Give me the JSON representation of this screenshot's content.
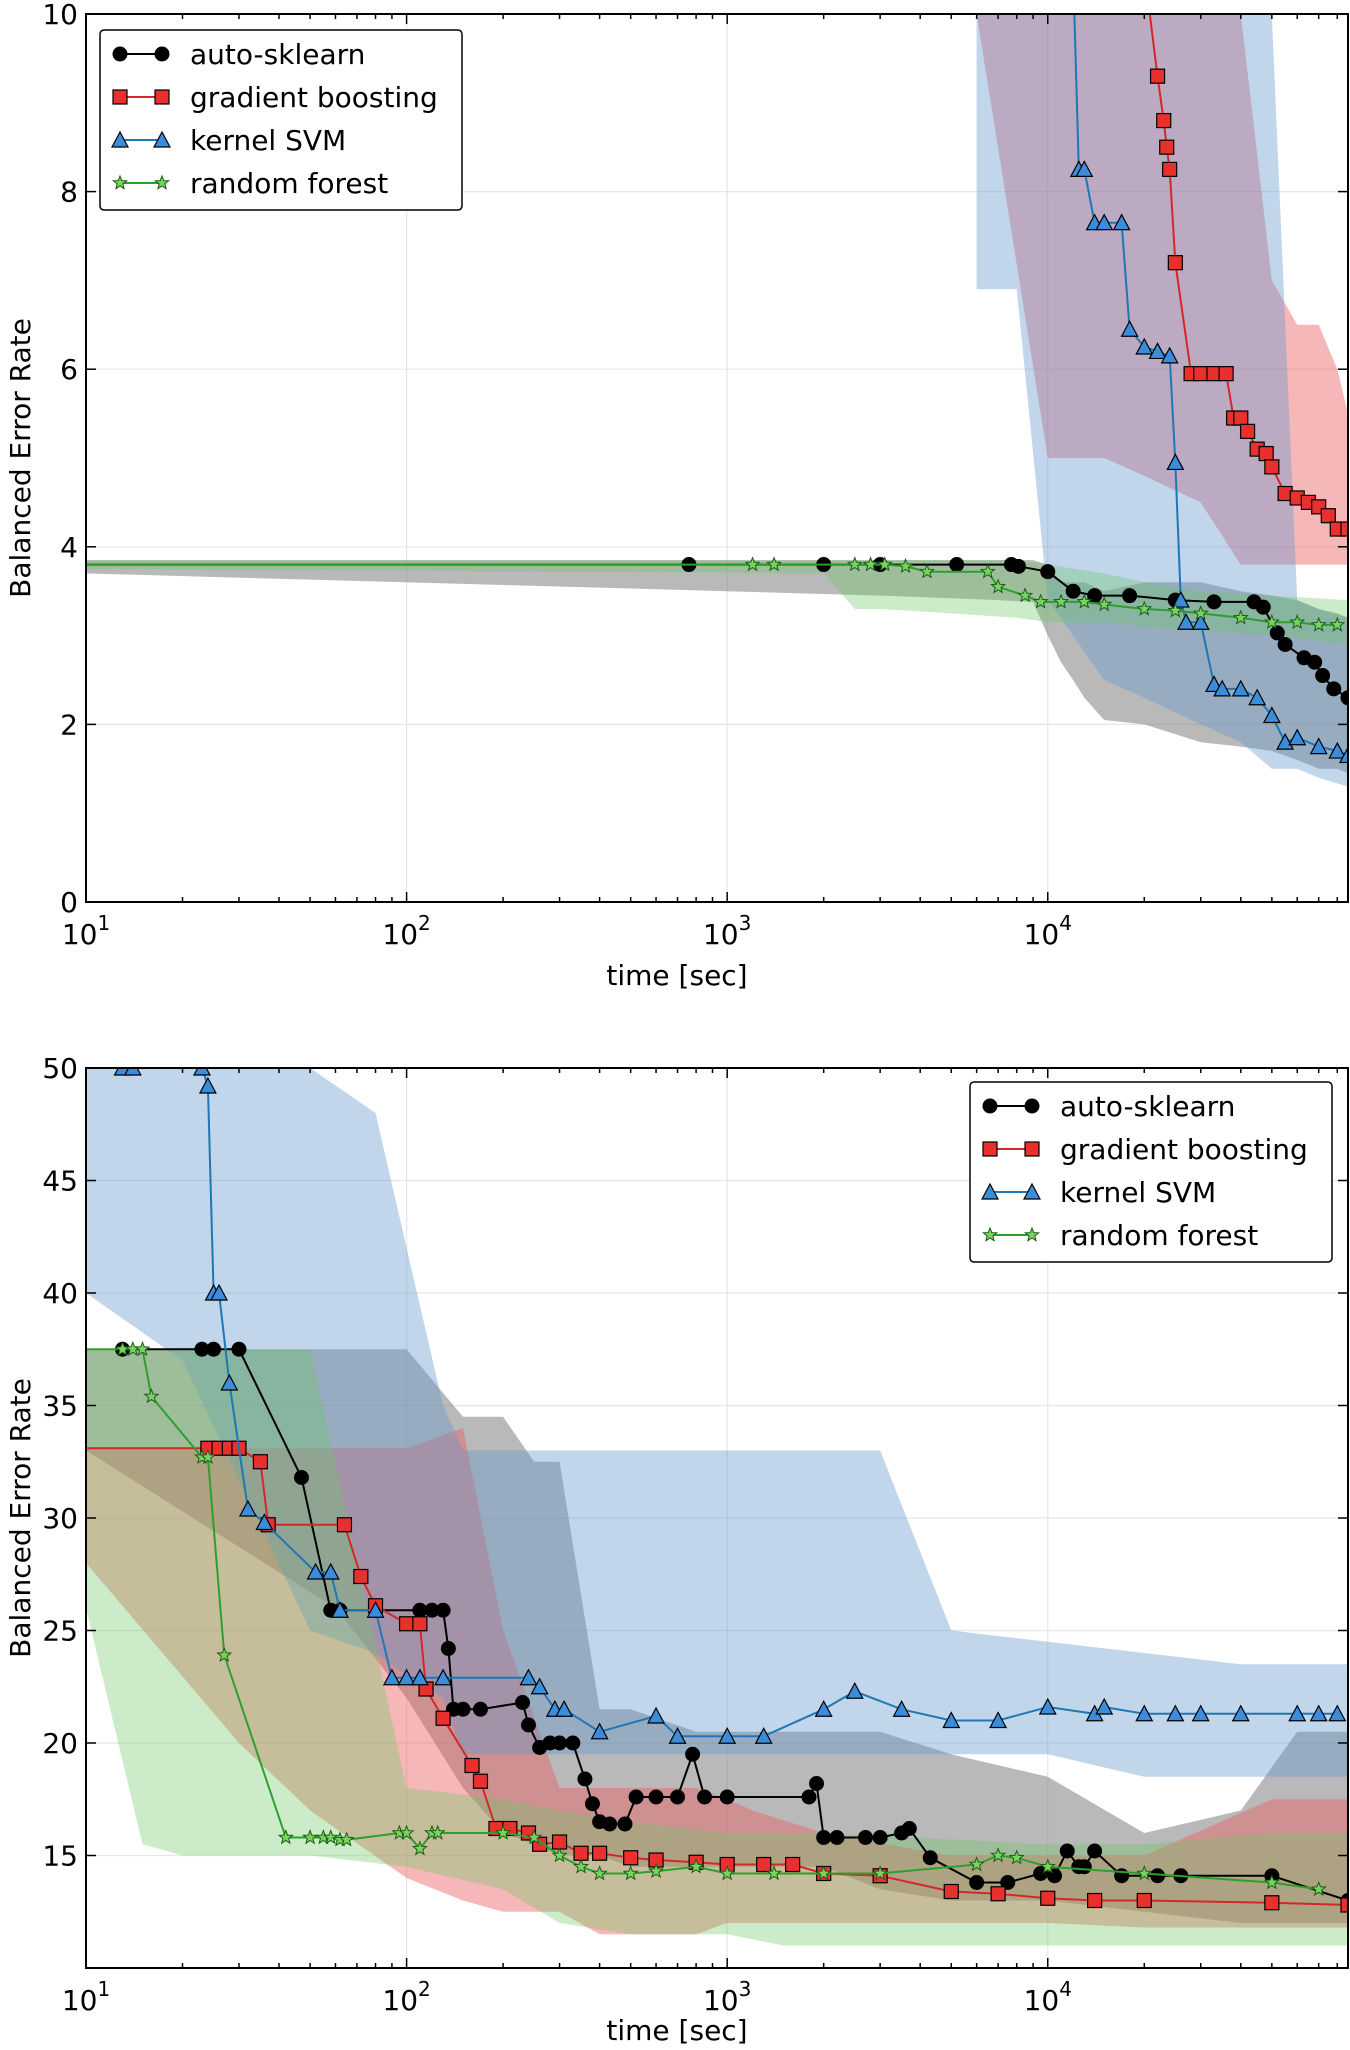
{
  "chart_data": [
    {
      "type": "line",
      "xscale": "log",
      "xlabel": "time [sec]",
      "ylabel": "Balanced Error Rate",
      "xlim": [
        10,
        86400
      ],
      "ylim": [
        0,
        10
      ],
      "yticks": [
        0,
        2,
        4,
        6,
        8,
        10
      ],
      "xticks": [
        {
          "value": 10,
          "base": "10",
          "exp": "1"
        },
        {
          "value": 100,
          "base": "10",
          "exp": "2"
        },
        {
          "value": 1000,
          "base": "10",
          "exp": "3"
        },
        {
          "value": 10000,
          "base": "10",
          "exp": "4"
        }
      ],
      "grid": true,
      "legend": "top-left",
      "series": [
        {
          "name": "auto-sklearn",
          "color": "#000000",
          "marker": "circle",
          "x": [
            10,
            760,
            2000,
            3000,
            5200,
            7700,
            8100,
            10000,
            12000,
            14000,
            18000,
            25000,
            33000,
            44000,
            47000,
            52000,
            55000,
            63000,
            68000,
            72000,
            78000,
            86400
          ],
          "y": [
            3.8,
            3.8,
            3.8,
            3.8,
            3.8,
            3.8,
            3.78,
            3.72,
            3.5,
            3.45,
            3.45,
            3.4,
            3.38,
            3.38,
            3.32,
            3.03,
            2.9,
            2.75,
            2.7,
            2.55,
            2.4,
            2.3
          ],
          "band_lo": [
            3.7,
            3.5,
            3.45,
            3.42,
            3.4,
            3.38,
            3.0,
            2.7,
            2.5,
            2.3,
            2.05,
            2.0,
            1.8,
            1.75,
            1.7,
            1.6,
            1.5,
            1.5,
            1.45
          ],
          "band_hi": [
            3.85,
            3.85,
            3.85,
            3.85,
            3.85,
            3.85,
            3.8,
            3.6,
            3.6,
            3.6,
            3.5,
            3.6,
            3.6,
            3.5,
            3.45,
            3.4,
            3.3,
            3.25,
            3.2
          ],
          "band_x": [
            10,
            1000,
            3000,
            5000,
            7000,
            9000,
            10000,
            11000,
            12000,
            13000,
            15000,
            20000,
            30000,
            40000,
            50000,
            60000,
            70000,
            80000,
            86400
          ]
        },
        {
          "name": "gradient boosting",
          "color": "#d62728",
          "marker": "square",
          "x": [
            20000,
            22000,
            23000,
            23500,
            24000,
            25000,
            28000,
            30000,
            33000,
            36000,
            38000,
            40000,
            42000,
            45000,
            48000,
            50000,
            55000,
            60000,
            65000,
            70000,
            75000,
            80000,
            86400
          ],
          "y": [
            10.5,
            9.3,
            8.8,
            8.5,
            8.25,
            7.2,
            5.95,
            5.95,
            5.95,
            5.95,
            5.45,
            5.45,
            5.3,
            5.1,
            5.05,
            4.9,
            4.6,
            4.55,
            4.5,
            4.45,
            4.35,
            4.2,
            4.2
          ],
          "band_x": [
            1700,
            2500,
            4000,
            6000,
            10000,
            15000,
            20000,
            30000,
            40000,
            50000,
            60000,
            70000,
            80000,
            86400
          ],
          "band_lo": [
            10,
            10,
            10,
            10,
            5.0,
            5.0,
            4.8,
            4.5,
            3.8,
            3.8,
            3.8,
            3.8,
            3.8,
            3.8
          ],
          "band_hi": [
            10,
            10,
            10,
            10,
            10,
            10,
            10,
            10,
            10,
            7.0,
            6.5,
            6.5,
            6.0,
            5.5
          ]
        },
        {
          "name": "kernel SVM",
          "color": "#1f77b4",
          "marker": "triangle",
          "x": [
            12000,
            12500,
            13000,
            14000,
            15000,
            17000,
            18000,
            20000,
            22000,
            24000,
            25000,
            26000,
            27000,
            30000,
            33000,
            35000,
            40000,
            45000,
            50000,
            55000,
            60000,
            70000,
            80000,
            86400
          ],
          "y": [
            10.5,
            8.25,
            8.25,
            7.65,
            7.65,
            7.65,
            6.45,
            6.25,
            6.2,
            6.15,
            4.95,
            3.4,
            3.15,
            3.15,
            2.45,
            2.4,
            2.4,
            2.3,
            2.1,
            1.8,
            1.85,
            1.75,
            1.7,
            1.65
          ],
          "band_x": [
            6000,
            8000,
            10000,
            12000,
            15000,
            20000,
            30000,
            40000,
            50000,
            60000,
            70000,
            86400
          ],
          "band_lo": [
            6.9,
            6.9,
            3.4,
            3.0,
            2.5,
            2.3,
            2.0,
            1.8,
            1.5,
            1.5,
            1.4,
            1.3
          ],
          "band_hi": [
            10,
            10,
            10,
            10,
            10,
            10,
            10,
            10,
            10,
            3.4,
            3.3,
            3.2
          ]
        },
        {
          "name": "random forest",
          "color": "#2ca02c",
          "marker": "star",
          "x": [
            10,
            1200,
            1400,
            2500,
            2800,
            3100,
            3600,
            4200,
            6500,
            7000,
            8500,
            9500,
            11000,
            13000,
            15000,
            20000,
            25000,
            30000,
            40000,
            50000,
            60000,
            70000,
            80000
          ],
          "y": [
            3.8,
            3.8,
            3.8,
            3.8,
            3.8,
            3.8,
            3.78,
            3.72,
            3.72,
            3.55,
            3.45,
            3.38,
            3.38,
            3.38,
            3.35,
            3.3,
            3.28,
            3.25,
            3.2,
            3.15,
            3.15,
            3.12,
            3.12
          ],
          "band_x": [
            10,
            2000,
            2500,
            3000,
            5000,
            8000,
            10000,
            15000,
            20000,
            30000,
            50000,
            86400
          ],
          "band_lo": [
            3.75,
            3.7,
            3.3,
            3.3,
            3.25,
            3.2,
            3.15,
            3.15,
            3.1,
            3.05,
            3.0,
            2.9
          ],
          "band_hi": [
            3.85,
            3.85,
            3.85,
            3.85,
            3.85,
            3.85,
            3.8,
            3.7,
            3.6,
            3.5,
            3.45,
            3.4
          ]
        }
      ]
    },
    {
      "type": "line",
      "xscale": "log",
      "xlabel": "time [sec]",
      "ylabel": "Balanced Error Rate",
      "xlim": [
        10,
        86400
      ],
      "ylim": [
        10,
        50
      ],
      "yticks": [
        15,
        20,
        25,
        30,
        35,
        40,
        45,
        50
      ],
      "xticks": [
        {
          "value": 10,
          "base": "10",
          "exp": "1"
        },
        {
          "value": 100,
          "base": "10",
          "exp": "2"
        },
        {
          "value": 1000,
          "base": "10",
          "exp": "3"
        },
        {
          "value": 10000,
          "base": "10",
          "exp": "4"
        }
      ],
      "grid": true,
      "legend": "top-right",
      "series": [
        {
          "name": "auto-sklearn",
          "color": "#000000",
          "marker": "circle",
          "x": [
            13,
            23,
            25,
            30,
            47,
            58,
            62,
            110,
            120,
            130,
            135,
            140,
            150,
            170,
            230,
            240,
            260,
            280,
            300,
            330,
            360,
            380,
            400,
            430,
            480,
            520,
            600,
            700,
            780,
            850,
            1000,
            1800,
            1900,
            2000,
            2200,
            2700,
            3000,
            3500,
            3700,
            4300,
            6000,
            7500,
            9500,
            10500,
            11500,
            12500,
            13000,
            14000,
            17000,
            22000,
            26000,
            50000,
            86400
          ],
          "y": [
            37.5,
            37.5,
            37.5,
            37.5,
            31.8,
            25.9,
            25.9,
            25.9,
            25.9,
            25.9,
            24.2,
            21.5,
            21.5,
            21.5,
            21.8,
            20.8,
            19.8,
            20.0,
            20.0,
            20.0,
            18.4,
            17.3,
            16.5,
            16.4,
            16.4,
            17.6,
            17.6,
            17.6,
            19.5,
            17.6,
            17.6,
            17.6,
            18.2,
            15.8,
            15.8,
            15.8,
            15.8,
            16.0,
            16.2,
            14.9,
            13.8,
            13.8,
            14.2,
            14.1,
            15.2,
            14.5,
            14.5,
            15.2,
            14.1,
            14.1,
            14.1,
            14.1,
            13.0
          ],
          "band_x": [
            10,
            60,
            100,
            150,
            200,
            250,
            300,
            400,
            500,
            800,
            1000,
            2000,
            3000,
            5000,
            10000,
            20000,
            40000,
            60000,
            86400
          ],
          "band_lo": [
            33,
            26,
            22,
            18,
            16,
            15.5,
            15,
            15,
            14.5,
            14.5,
            14.5,
            14.5,
            13.5,
            13,
            13,
            12.5,
            12,
            12,
            12
          ],
          "band_hi": [
            37.5,
            37.5,
            37.5,
            34.5,
            34.5,
            32.5,
            32.5,
            21.5,
            21.5,
            20.5,
            20.5,
            20.5,
            20.5,
            19.5,
            18.5,
            16,
            17,
            20.5,
            20.5
          ]
        },
        {
          "name": "gradient boosting",
          "color": "#d62728",
          "marker": "square",
          "x": [
            10,
            24,
            26,
            28,
            30,
            35,
            37,
            64,
            72,
            80,
            100,
            110,
            115,
            130,
            160,
            170,
            190,
            210,
            240,
            260,
            300,
            350,
            400,
            500,
            600,
            800,
            1000,
            1300,
            1600,
            2000,
            3000,
            5000,
            7000,
            10000,
            14000,
            20000,
            50000,
            86400
          ],
          "y": [
            33.1,
            33.1,
            33.1,
            33.1,
            33.1,
            32.5,
            29.7,
            29.7,
            27.4,
            26.1,
            25.3,
            25.3,
            22.4,
            21.1,
            19.0,
            18.3,
            16.2,
            16.2,
            16.0,
            15.5,
            15.6,
            15.1,
            15.1,
            14.9,
            14.8,
            14.7,
            14.6,
            14.6,
            14.6,
            14.2,
            14.1,
            13.4,
            13.3,
            13.1,
            13.0,
            13.0,
            12.9,
            12.8
          ],
          "band_x": [
            10,
            30,
            50,
            100,
            150,
            200,
            300,
            400,
            600,
            800,
            1000,
            1200,
            2000,
            5000,
            10000,
            20000,
            50000,
            86400
          ],
          "band_lo": [
            28,
            20,
            17,
            14,
            13,
            12.5,
            12.5,
            11.5,
            11.5,
            11.5,
            12,
            12,
            12,
            12,
            12,
            11.8,
            11.8,
            11.8
          ],
          "band_hi": [
            33.1,
            33.1,
            33.1,
            33.1,
            34,
            25,
            18,
            18,
            18,
            18,
            17.5,
            17,
            16,
            15,
            15,
            15,
            17.5,
            17.5
          ]
        },
        {
          "name": "kernel SVM",
          "color": "#1f77b4",
          "marker": "triangle",
          "x": [
            13,
            14,
            23,
            24,
            25,
            26,
            28,
            32,
            36,
            52,
            58,
            62,
            80,
            90,
            100,
            110,
            130,
            240,
            260,
            290,
            310,
            400,
            600,
            700,
            1000,
            1300,
            2000,
            2500,
            3500,
            5000,
            7000,
            10000,
            14000,
            15000,
            20000,
            25000,
            30000,
            40000,
            60000,
            70000,
            80000
          ],
          "y": [
            50,
            50,
            50,
            49.2,
            40,
            40,
            36,
            30.4,
            29.8,
            27.6,
            27.6,
            25.9,
            25.9,
            22.9,
            22.9,
            22.9,
            22.9,
            22.9,
            22.5,
            21.5,
            21.5,
            20.5,
            21.2,
            20.3,
            20.3,
            20.3,
            21.5,
            22.3,
            21.5,
            21.0,
            21.0,
            21.6,
            21.3,
            21.6,
            21.3,
            21.3,
            21.3,
            21.3,
            21.3,
            21.3,
            21.3
          ],
          "band_x": [
            10,
            20,
            50,
            80,
            100,
            130,
            150,
            300,
            500,
            1000,
            2000,
            3000,
            5000,
            10000,
            20000,
            40000,
            60000,
            86400
          ],
          "band_lo": [
            40,
            37,
            25,
            24,
            23,
            22,
            19.5,
            19.5,
            19.5,
            19.5,
            19.5,
            19.5,
            19.5,
            19.5,
            18.5,
            18.5,
            18.5,
            18.5
          ],
          "band_hi": [
            50,
            50,
            50,
            48,
            42,
            35,
            33,
            33,
            33,
            33,
            33,
            33,
            25,
            24.5,
            24,
            23.5,
            23.5,
            23.5
          ]
        },
        {
          "name": "random forest",
          "color": "#2ca02c",
          "marker": "star",
          "x": [
            10,
            13,
            14,
            15,
            16,
            23,
            24,
            27,
            42,
            50,
            55,
            58,
            62,
            65,
            95,
            100,
            110,
            120,
            125,
            200,
            250,
            300,
            350,
            400,
            500,
            600,
            800,
            1000,
            1400,
            2000,
            3000,
            6000,
            7000,
            8000,
            10000,
            20000,
            50000,
            70000
          ],
          "y": [
            37.5,
            37.5,
            37.5,
            37.5,
            35.4,
            32.7,
            32.7,
            23.9,
            15.8,
            15.8,
            15.8,
            15.8,
            15.7,
            15.7,
            16.0,
            16.0,
            15.3,
            16.0,
            16.0,
            16.0,
            15.8,
            15.0,
            14.5,
            14.2,
            14.2,
            14.3,
            14.5,
            14.2,
            14.2,
            14.2,
            14.2,
            14.6,
            15.0,
            14.9,
            14.5,
            14.2,
            13.8,
            13.5
          ],
          "band_x": [
            10,
            15,
            20,
            25,
            30,
            50,
            100,
            200,
            300,
            500,
            1000,
            1500,
            2000,
            10000,
            20000,
            50000,
            86400
          ],
          "band_lo": [
            26,
            15.5,
            15.0,
            15.0,
            15.0,
            15.0,
            14.5,
            13.5,
            12.0,
            11.5,
            11.5,
            11.0,
            11.0,
            11.0,
            11.0,
            11.0,
            11.0
          ],
          "band_hi": [
            37.5,
            37.5,
            37.5,
            37.5,
            37.5,
            37.5,
            18.0,
            17.5,
            17.0,
            16.5,
            16.0,
            16.0,
            16.0,
            15.5,
            15.5,
            16.0,
            16.0
          ]
        }
      ]
    }
  ]
}
